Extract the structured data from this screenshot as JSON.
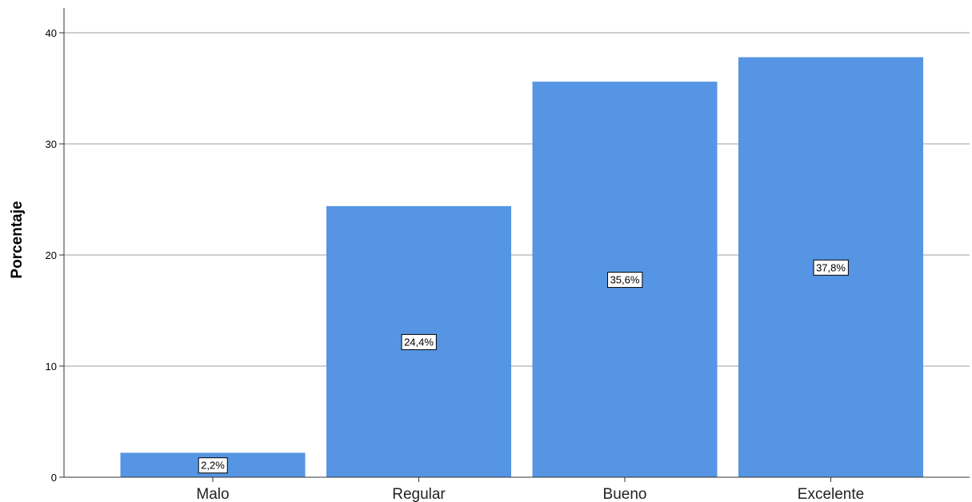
{
  "chart_data": {
    "type": "bar",
    "categories": [
      "Malo",
      "Regular",
      "Bueno",
      "Excelente"
    ],
    "values": [
      2.2,
      24.4,
      35.6,
      37.8
    ],
    "data_labels": [
      "2,2%",
      "24,4%",
      "35,6%",
      "37,8%"
    ],
    "title": "",
    "xlabel": "",
    "ylabel": "Porcentaje",
    "ylim": [
      0,
      40
    ],
    "yticks": [
      0,
      10,
      20,
      30,
      40
    ],
    "grid": true,
    "bar_color": "#5595e3"
  }
}
